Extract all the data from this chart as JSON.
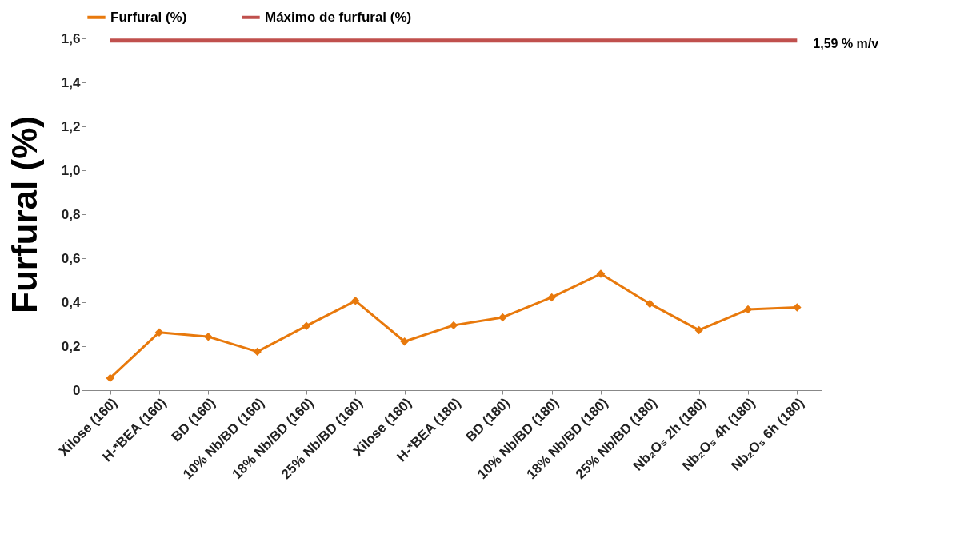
{
  "chart_data": {
    "type": "line",
    "ylabel": "Furfural (%)",
    "categories": [
      "Xilose (160)",
      "H-*BEA (160)",
      "BD (160)",
      "10% Nb/BD (160)",
      "18% Nb/BD (160)",
      "25% Nb/BD (160)",
      "Xilose (180)",
      "H-*BEA (180)",
      "BD (180)",
      "10% Nb/BD (180)",
      "18% Nb/BD (180)",
      "25% Nb/BD (180)",
      "Nb₂O₅ 2h (180)",
      "Nb₂O₅ 4h (180)",
      "Nb₂O₅ 6h (180)"
    ],
    "series": [
      {
        "name": "Furfural (%)",
        "color": "#e8790c",
        "marker": "diamond",
        "values": [
          0.055,
          0.263,
          0.243,
          0.175,
          0.292,
          0.406,
          0.221,
          0.295,
          0.331,
          0.422,
          0.529,
          0.393,
          0.273,
          0.367,
          0.376
        ]
      },
      {
        "name": "Máximo de furfural (%)",
        "color": "#c0504d",
        "marker": "none",
        "values": [
          1.59,
          1.59,
          1.59,
          1.59,
          1.59,
          1.59,
          1.59,
          1.59,
          1.59,
          1.59,
          1.59,
          1.59,
          1.59,
          1.59,
          1.59
        ]
      }
    ],
    "annotations": [
      {
        "text": "1,59 % m/v",
        "x": "Nb₂O₅ 6h (180)",
        "y": 1.59
      }
    ],
    "ylim": [
      0,
      1.6
    ],
    "yticks": [
      0,
      {
        "value": 0.2,
        "label": "0,2"
      },
      {
        "value": 0.4,
        "label": "0,4"
      },
      {
        "value": 0.6,
        "label": "0,6"
      },
      {
        "value": 0.8,
        "label": "0,8"
      },
      {
        "value": 1,
        "label": "1,0"
      },
      {
        "value": 1.2,
        "label": "1,2"
      },
      {
        "value": 1.4,
        "label": "1,4"
      },
      {
        "value": 1.6,
        "label": "1,6"
      }
    ],
    "grid": false,
    "legend": "top"
  }
}
